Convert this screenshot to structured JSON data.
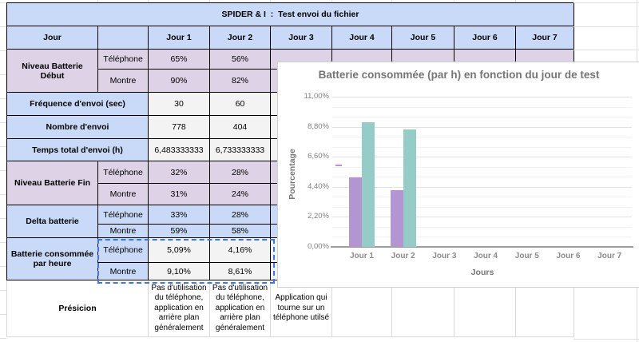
{
  "table": {
    "title": "SPIDER & I  :  Test envoi du fichier",
    "header": {
      "jour": "Jour",
      "days": [
        "Jour 1",
        "Jour 2",
        "Jour 3",
        "Jour 4",
        "Jour 5",
        "Jour 6",
        "Jour 7"
      ]
    },
    "devices": {
      "tel": "Téléphone",
      "montre": "Montre"
    },
    "groups": {
      "nbd": {
        "label": "Niveau Batterie Début",
        "tel": [
          "65%",
          "56%"
        ],
        "montre": [
          "90%",
          "82%"
        ]
      },
      "freq": {
        "label": "Fréquence d'envoi (sec)",
        "values": [
          "30",
          "60"
        ]
      },
      "nombre": {
        "label": "Nombre d'envoi",
        "values": [
          "778",
          "404"
        ]
      },
      "temps": {
        "label": "Temps total d'envoi (h)",
        "values": [
          "6,483333333",
          "6,733333333"
        ]
      },
      "nbf": {
        "label": "Niveau Batterie Fin",
        "tel": [
          "32%",
          "28%"
        ],
        "montre": [
          "31%",
          "24%"
        ]
      },
      "delta": {
        "label": "Delta batterie",
        "tel": [
          "33%",
          "28%"
        ],
        "montre": [
          "59%",
          "58%"
        ]
      },
      "bch": {
        "label": "Batterie consommée par heure",
        "tel": [
          "5,09%",
          "4,16%"
        ],
        "montre": [
          "9,10%",
          "8,61%"
        ]
      },
      "presicion": {
        "label": "Présicion",
        "values": [
          "Pas d'utilisation du téléphone, application en arrière plan généralement",
          "Pas d'utilisation du téléphone, application en arrière plan généralement",
          "Application qui tourne sur un téléphone utilsé"
        ]
      }
    }
  },
  "colors": {
    "cell_blue": "#c9daf8",
    "cell_lavender": "#ddd2e6",
    "cell_gray": "#f3f3f3",
    "selection_blue": "#3b78e7",
    "bar_telephone": "#b295d1",
    "bar_montre": "#96ccc8"
  },
  "chart_data": {
    "type": "bar",
    "title": "Batterie consommée (par h) en fonction du jour de test",
    "xlabel": "Jours",
    "ylabel": "Pourcentage",
    "categories": [
      "Jour 1",
      "Jour 2",
      "Jour 3",
      "Jour 4",
      "Jour 5",
      "Jour 6",
      "Jour 7"
    ],
    "series": [
      {
        "name": "Téléphone",
        "color": "#b295d1",
        "values": [
          5.09,
          4.16,
          null,
          null,
          null,
          null,
          null
        ]
      },
      {
        "name": "Montre",
        "color": "#96ccc8",
        "values": [
          9.1,
          8.61,
          null,
          null,
          null,
          null,
          null
        ]
      }
    ],
    "ylim": [
      0,
      11
    ],
    "yticks": [
      "0,00%",
      "2,20%",
      "4,40%",
      "6,60%",
      "8,80%",
      "11,00%"
    ],
    "grid": true,
    "legend_position": "inline-annotations"
  }
}
